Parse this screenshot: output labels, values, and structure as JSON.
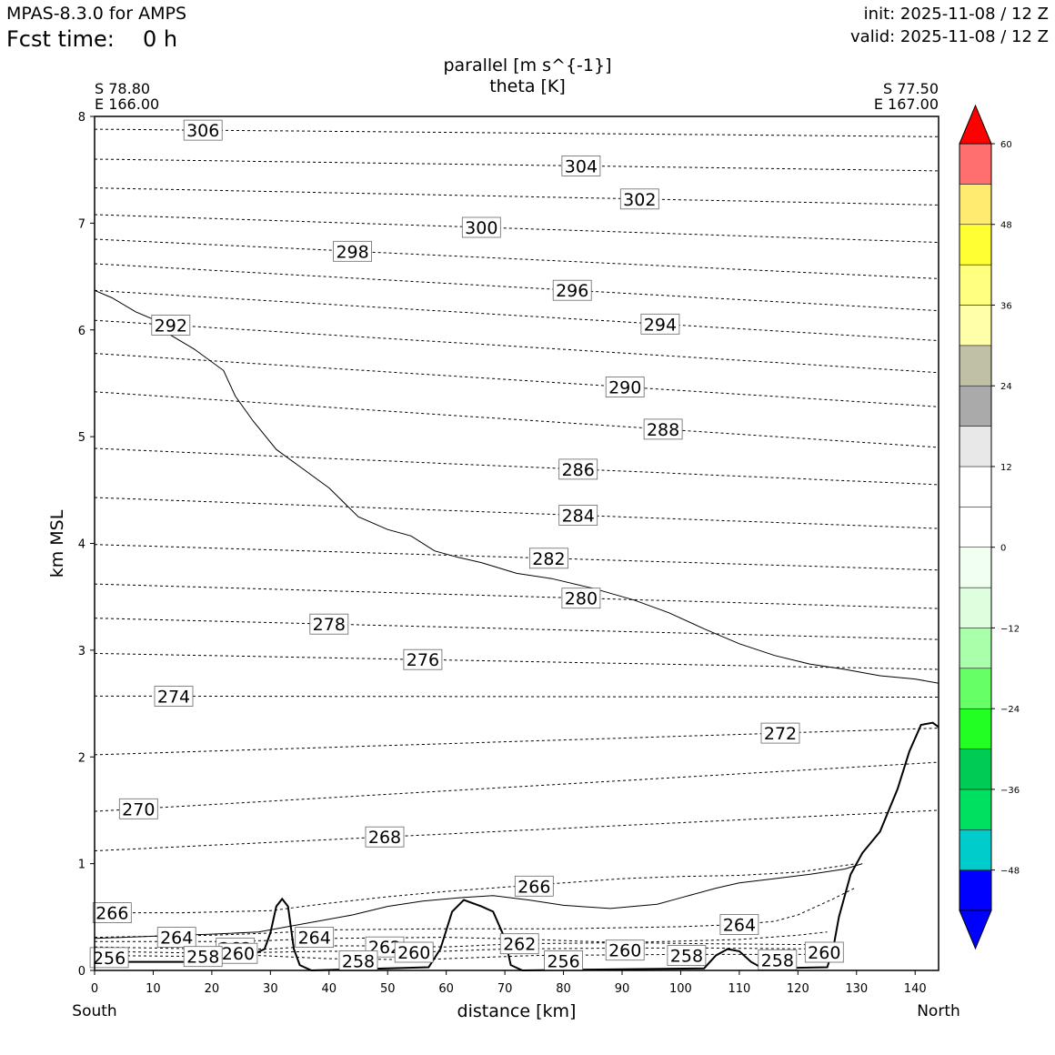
{
  "header": {
    "model": "MPAS-8.3.0 for AMPS",
    "fcst_label": "Fcst time:",
    "fcst_value": "0 h",
    "init": "init: 2025-11-08 / 12 Z",
    "valid": "valid: 2025-11-08 / 12 Z"
  },
  "chart_data": {
    "type": "line",
    "title": "parallel [m s^{-1}]",
    "subtitle": "theta [K]",
    "xlabel": "distance [km]",
    "ylabel": "km MSL",
    "xlim": [
      0,
      144
    ],
    "ylim": [
      0,
      8
    ],
    "xticks": [
      "0",
      "10",
      "20",
      "30",
      "40",
      "50",
      "60",
      "70",
      "80",
      "90",
      "100",
      "110",
      "120",
      "130",
      "140"
    ],
    "yticks": [
      "0",
      "1",
      "2",
      "3",
      "4",
      "5",
      "6",
      "7",
      "8"
    ],
    "endpoints": {
      "left_lat": "S 78.80",
      "left_lon": "E 166.00",
      "right_lat": "S 77.50",
      "right_lon": "E 167.00",
      "left_dir": "South",
      "right_dir": "North"
    },
    "grid": false,
    "colorbar": {
      "placement": "right",
      "ticks": [
        "60",
        "48",
        "36",
        "24",
        "12",
        "0",
        "−12",
        "−24",
        "−36",
        "−48"
      ],
      "tick_values": [
        60,
        48,
        36,
        24,
        12,
        0,
        -12,
        -24,
        -36,
        -48
      ],
      "levels": [
        -54,
        -48,
        -42,
        -36,
        -30,
        -24,
        -18,
        -12,
        -6,
        0,
        6,
        12,
        18,
        24,
        30,
        36,
        42,
        48,
        54,
        60
      ],
      "colors": [
        "#0000ff",
        "#00cccc",
        "#00e060",
        "#00cc55",
        "#22ff22",
        "#66ff66",
        "#aaffaa",
        "#ddffdd",
        "#f0fff0",
        "#ffffff",
        "#ffffff",
        "#e8e8e8",
        "#aaaaaa",
        "#c0c0a4",
        "#ffffaa",
        "#ffff80",
        "#ffff33",
        "#ffeb70",
        "#ff6f6f",
        "#ff0000"
      ],
      "extend_low": "#0000ff",
      "extend_high": "#ff0000"
    },
    "terrain": [
      [
        0,
        0.08
      ],
      [
        20,
        0.08
      ],
      [
        25,
        0.1
      ],
      [
        29,
        0.2
      ],
      [
        30,
        0.35
      ],
      [
        31,
        0.6
      ],
      [
        32,
        0.67
      ],
      [
        33,
        0.6
      ],
      [
        34,
        0.2
      ],
      [
        35,
        0.05
      ],
      [
        37,
        0.0
      ],
      [
        57,
        0.03
      ],
      [
        59,
        0.2
      ],
      [
        61,
        0.55
      ],
      [
        63,
        0.66
      ],
      [
        66,
        0.6
      ],
      [
        68,
        0.55
      ],
      [
        70,
        0.3
      ],
      [
        71,
        0.05
      ],
      [
        73,
        0.0
      ],
      [
        104,
        0.02
      ],
      [
        106,
        0.14
      ],
      [
        108,
        0.2
      ],
      [
        110,
        0.18
      ],
      [
        112,
        0.08
      ],
      [
        114,
        0.02
      ],
      [
        125,
        0.03
      ],
      [
        126,
        0.2
      ],
      [
        127,
        0.5
      ],
      [
        129,
        0.9
      ],
      [
        131,
        1.1
      ],
      [
        134,
        1.3
      ],
      [
        137,
        1.7
      ],
      [
        139,
        2.05
      ],
      [
        141,
        2.3
      ],
      [
        143,
        2.32
      ],
      [
        144,
        2.28
      ]
    ],
    "tropopause_line": [
      [
        0,
        6.37
      ],
      [
        3,
        6.3
      ],
      [
        7,
        6.17
      ],
      [
        10,
        6.1
      ],
      [
        13,
        5.95
      ],
      [
        17,
        5.82
      ],
      [
        22,
        5.62
      ],
      [
        24,
        5.38
      ],
      [
        27,
        5.15
      ],
      [
        31,
        4.88
      ],
      [
        35,
        4.72
      ],
      [
        40,
        4.52
      ],
      [
        45,
        4.25
      ],
      [
        50,
        4.13
      ],
      [
        54,
        4.07
      ],
      [
        58,
        3.93
      ],
      [
        62,
        3.87
      ],
      [
        66,
        3.82
      ],
      [
        72,
        3.72
      ],
      [
        78,
        3.67
      ],
      [
        85,
        3.58
      ],
      [
        92,
        3.47
      ],
      [
        98,
        3.35
      ],
      [
        104,
        3.2
      ],
      [
        110,
        3.06
      ],
      [
        116,
        2.95
      ],
      [
        122,
        2.87
      ],
      [
        128,
        2.82
      ],
      [
        134,
        2.76
      ],
      [
        140,
        2.73
      ],
      [
        144,
        2.69
      ]
    ],
    "low_solid_line": [
      [
        0,
        0.3
      ],
      [
        10,
        0.32
      ],
      [
        20,
        0.34
      ],
      [
        28,
        0.36
      ],
      [
        32,
        0.4
      ],
      [
        38,
        0.46
      ],
      [
        44,
        0.52
      ],
      [
        50,
        0.6
      ],
      [
        56,
        0.65
      ],
      [
        62,
        0.68
      ],
      [
        68,
        0.7
      ],
      [
        74,
        0.66
      ],
      [
        80,
        0.61
      ],
      [
        88,
        0.58
      ],
      [
        96,
        0.62
      ],
      [
        100,
        0.68
      ],
      [
        106,
        0.77
      ],
      [
        110,
        0.82
      ],
      [
        116,
        0.86
      ],
      [
        122,
        0.9
      ],
      [
        128,
        0.95
      ],
      [
        131,
        1.0
      ]
    ],
    "theta_contours": [
      {
        "value": 306,
        "y0": 7.88,
        "y1": 7.81,
        "label": "306",
        "label_x": 18.5
      },
      {
        "value": 304,
        "y0": 7.6,
        "y1": 7.49,
        "label": "304",
        "label_x": 83
      },
      {
        "value": 302,
        "y0": 7.33,
        "y1": 7.17,
        "label": "302",
        "label_x": 93
      },
      {
        "value": 300,
        "y0": 7.08,
        "y1": 6.82,
        "label": "300",
        "label_x": 66
      },
      {
        "value": 298,
        "y0": 6.85,
        "y1": 6.48,
        "label": "298",
        "label_x": 44
      },
      {
        "value": 296,
        "y0": 6.62,
        "y1": 6.18,
        "label": "296",
        "label_x": 81.5
      },
      {
        "value": 294,
        "y0": 6.37,
        "y1": 5.9,
        "label": "294",
        "label_x": 96.5
      },
      {
        "value": 292,
        "y0": 6.09,
        "y1": 5.6,
        "label": "292",
        "label_x": 13
      },
      {
        "value": 290,
        "y0": 5.78,
        "y1": 5.28,
        "label": "290",
        "label_x": 90.5
      },
      {
        "value": 288,
        "y0": 5.42,
        "y1": 4.9,
        "label": "288",
        "label_x": 97
      },
      {
        "value": 286,
        "y0": 4.89,
        "y1": 4.55,
        "label": "286",
        "label_x": 82.5
      },
      {
        "value": 284,
        "y0": 4.43,
        "y1": 4.14,
        "label": "284",
        "label_x": 82.5
      },
      {
        "value": 282,
        "y0": 3.99,
        "y1": 3.75,
        "label": "282",
        "label_x": 77.5
      },
      {
        "value": 280,
        "y0": 3.62,
        "y1": 3.39,
        "label": "280",
        "label_x": 83
      },
      {
        "value": 278,
        "y0": 3.3,
        "y1": 3.1,
        "label": "278",
        "label_x": 40
      },
      {
        "value": 276,
        "y0": 2.97,
        "y1": 2.82,
        "label": "276",
        "label_x": 56
      },
      {
        "value": 274,
        "y0": 2.57,
        "y1": 2.56,
        "label": "274",
        "label_x": 13.5
      },
      {
        "value": 272,
        "y0": 2.02,
        "y1": 2.27,
        "label": "272",
        "label_x": 117
      },
      {
        "value": 270,
        "y0": 1.49,
        "y1": 1.95,
        "label": "270",
        "label_x": 7.5
      },
      {
        "value": 268,
        "y0": 1.12,
        "y1": 1.5,
        "label": "268",
        "label_x": 49.5
      }
    ],
    "low_contour_labels": [
      {
        "label": "266",
        "x": 3,
        "y": 0.54
      },
      {
        "label": "266",
        "x": 75,
        "y": 0.79
      },
      {
        "label": "264",
        "x": 14,
        "y": 0.31
      },
      {
        "label": "264",
        "x": 37.5,
        "y": 0.31
      },
      {
        "label": "264",
        "x": 110,
        "y": 0.43
      },
      {
        "label": "262",
        "x": 24,
        "y": 0.21
      },
      {
        "label": "262",
        "x": 49.5,
        "y": 0.22
      },
      {
        "label": "262",
        "x": 72.5,
        "y": 0.25
      },
      {
        "label": "260",
        "x": 24.5,
        "y": 0.16
      },
      {
        "label": "260",
        "x": 54.5,
        "y": 0.17
      },
      {
        "label": "260",
        "x": 90.5,
        "y": 0.19
      },
      {
        "label": "260",
        "x": 124.5,
        "y": 0.17
      },
      {
        "label": "258",
        "x": 18.5,
        "y": 0.13
      },
      {
        "label": "258",
        "x": 45,
        "y": 0.09
      },
      {
        "label": "258",
        "x": 101,
        "y": 0.14
      },
      {
        "label": "258",
        "x": 116.5,
        "y": 0.1
      },
      {
        "label": "256",
        "x": 2.5,
        "y": 0.12
      },
      {
        "label": "256",
        "x": 80,
        "y": 0.09
      }
    ],
    "low_dashed_lines": [
      {
        "pts": [
          [
            0,
            0.54
          ],
          [
            15,
            0.54
          ],
          [
            30,
            0.56
          ],
          [
            40,
            0.63
          ],
          [
            50,
            0.69
          ],
          [
            60,
            0.74
          ],
          [
            70,
            0.78
          ],
          [
            80,
            0.82
          ],
          [
            90,
            0.86
          ],
          [
            100,
            0.88
          ],
          [
            110,
            0.89
          ],
          [
            120,
            0.92
          ],
          [
            130,
            1.0
          ]
        ]
      },
      {
        "pts": [
          [
            0,
            0.31
          ],
          [
            20,
            0.33
          ],
          [
            30,
            0.35
          ],
          [
            40,
            0.38
          ],
          [
            60,
            0.39
          ],
          [
            80,
            0.39
          ],
          [
            100,
            0.41
          ],
          [
            110,
            0.43
          ],
          [
            116,
            0.46
          ],
          [
            120,
            0.52
          ],
          [
            126,
            0.67
          ],
          [
            130,
            0.78
          ]
        ]
      },
      {
        "pts": [
          [
            0,
            0.27
          ],
          [
            20,
            0.27
          ],
          [
            30,
            0.28
          ],
          [
            34,
            0.29
          ],
          [
            40,
            0.3
          ],
          [
            60,
            0.31
          ],
          [
            75,
            0.29
          ],
          [
            90,
            0.26
          ],
          [
            110,
            0.29
          ],
          [
            120,
            0.33
          ],
          [
            125,
            0.36
          ]
        ]
      },
      {
        "pts": [
          [
            0,
            0.22
          ],
          [
            20,
            0.2
          ],
          [
            30,
            0.2
          ],
          [
            38,
            0.23
          ],
          [
            50,
            0.23
          ],
          [
            60,
            0.22
          ],
          [
            72,
            0.25
          ],
          [
            90,
            0.26
          ],
          [
            105,
            0.25
          ],
          [
            125,
            0.24
          ]
        ]
      },
      {
        "pts": [
          [
            0,
            0.18
          ],
          [
            20,
            0.16
          ],
          [
            30,
            0.17
          ],
          [
            40,
            0.18
          ],
          [
            55,
            0.17
          ],
          [
            70,
            0.2
          ],
          [
            90,
            0.21
          ],
          [
            105,
            0.21
          ],
          [
            125,
            0.2
          ]
        ]
      },
      {
        "pts": [
          [
            0,
            0.14
          ],
          [
            20,
            0.13
          ],
          [
            28,
            0.14
          ],
          [
            40,
            0.11
          ],
          [
            55,
            0.1
          ],
          [
            75,
            0.14
          ],
          [
            100,
            0.15
          ],
          [
            125,
            0.15
          ]
        ]
      }
    ]
  }
}
